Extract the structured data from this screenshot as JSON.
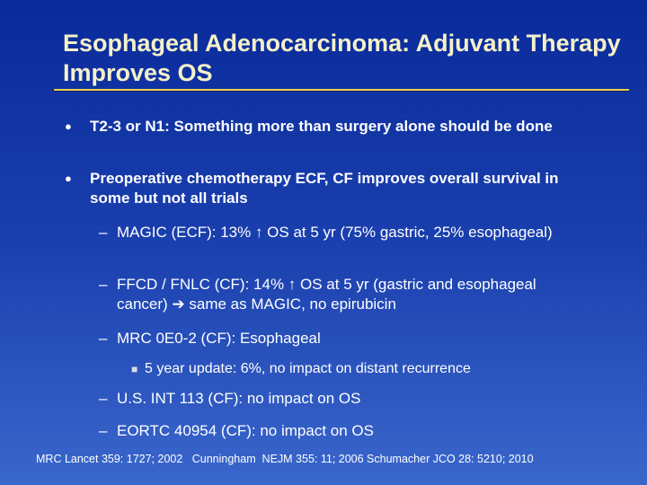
{
  "title": "Esophageal Adenocarcinoma:  Adjuvant Therapy Improves OS",
  "bullets": [
    "T2-3 or N1:  Something more than surgery alone should be done",
    "Preoperative chemotherapy ECF, CF improves overall survival in some but not all trials"
  ],
  "sub_bullets": [
    "MAGIC (ECF):  13% ↑ OS at 5 yr (75% gastric, 25% esophageal)",
    "FFCD / FNLC (CF):  14% ↑ OS at 5 yr (gastric and esophageal cancer) ➔ same as MAGIC, no epirubicin",
    "MRC 0E0-2 (CF):  Esophageal",
    "U.S. INT 113 (CF):  no impact on OS",
    "EORTC 40954 (CF): no impact on OS"
  ],
  "sub_sub_bullets": [
    "5 year update: 6%, no impact on distant recurrence"
  ],
  "footnote": "MRC Lancet 359: 1727; 2002   Cunningham  NEJM 355: 11; 2006 Schumacher JCO 28: 5210; 2010"
}
